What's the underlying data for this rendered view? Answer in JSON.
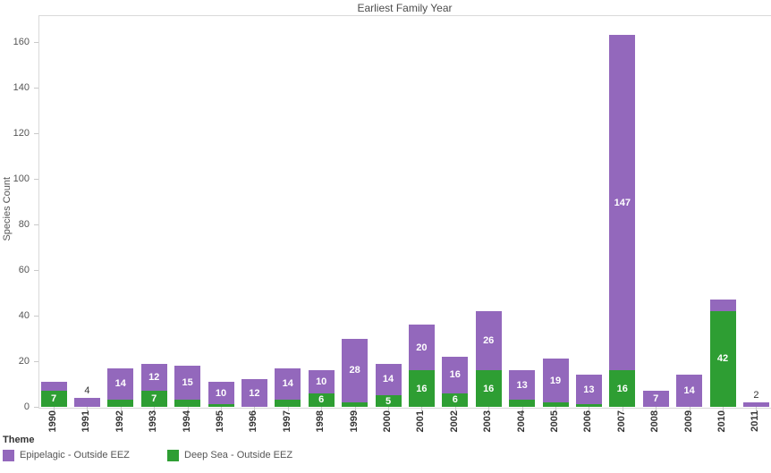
{
  "title": "Earliest Family Year",
  "y_axis": {
    "label": "Species Count",
    "ticks": [
      0,
      20,
      40,
      60,
      80,
      100,
      120,
      140,
      160
    ]
  },
  "legend": {
    "title": "Theme",
    "items": [
      {
        "label": "Epipelagic - Outside EEZ",
        "color": "#9368bc"
      },
      {
        "label": "Deep Sea - Outside EEZ",
        "color": "#2e9e33"
      }
    ]
  },
  "chart_data": {
    "type": "bar",
    "stacked": true,
    "title": "Earliest Family Year",
    "xlabel": "",
    "ylabel": "Species Count",
    "ylim": [
      0,
      172
    ],
    "y_ticks": [
      0,
      20,
      40,
      60,
      80,
      100,
      120,
      140,
      160
    ],
    "grid": false,
    "legend_position": "bottom",
    "legend_title": "Theme",
    "categories": [
      "1990",
      "1991",
      "1992",
      "1993",
      "1994",
      "1995",
      "1996",
      "1997",
      "1998",
      "1999",
      "2000",
      "2001",
      "2002",
      "2003",
      "2004",
      "2005",
      "2006",
      "2007",
      "2008",
      "2009",
      "2010",
      "2011"
    ],
    "series": [
      {
        "name": "Deep Sea - Outside EEZ",
        "color": "#2e9e33",
        "values": [
          7,
          0,
          3,
          7,
          3,
          1,
          0,
          3,
          6,
          2,
          5,
          16,
          6,
          16,
          3,
          2,
          1,
          16,
          0,
          0,
          42,
          0
        ],
        "bar_labels": [
          "7",
          "",
          "",
          "7",
          "",
          "",
          "",
          "",
          "6",
          "",
          "5",
          "16",
          "6",
          "16",
          "",
          "",
          "",
          "16",
          "",
          "",
          "42",
          ""
        ]
      },
      {
        "name": "Epipelagic - Outside EEZ",
        "color": "#9368bc",
        "values": [
          4,
          4,
          14,
          12,
          15,
          10,
          12,
          14,
          10,
          28,
          14,
          20,
          16,
          26,
          13,
          19,
          13,
          147,
          7,
          14,
          5,
          2
        ],
        "bar_labels": [
          "",
          "",
          "14",
          "12",
          "15",
          "10",
          "12",
          "14",
          "10",
          "28",
          "14",
          "20",
          "16",
          "26",
          "13",
          "19",
          "13",
          "147",
          "7",
          "14",
          "",
          ""
        ]
      }
    ],
    "outside_labels": [
      "",
      "4",
      "",
      "",
      "",
      "",
      "",
      "",
      "",
      "",
      "",
      "",
      "",
      "",
      "",
      "",
      "",
      "",
      "",
      "",
      "",
      "2"
    ]
  }
}
